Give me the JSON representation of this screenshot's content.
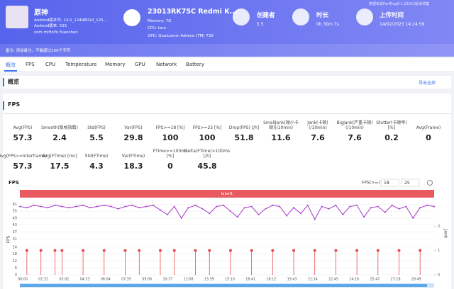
{
  "header": {
    "app_name": "原神",
    "android_build": "Android版本号: 14.0_12498014_125...",
    "android_kernel": "Android版本: 515",
    "package": "com.miHoYo.Yuanshen",
    "device": "23013RK75C Redmi K...",
    "memory": "Memory: 7G",
    "cpu": "CPU: taro",
    "gpu": "GPU: Qualcomm Adreno (TM) 730",
    "creator_label": "创建者",
    "creator_value": "5 5",
    "duration_label": "时长",
    "duration_value": "0h 30m 7s",
    "upload_label": "上传时间",
    "upload_value": "14/02/2023 14:24:59",
    "source_note": "数据来源PerfDog8.1.23012版本收集",
    "remark": "备注: 添加备注，不能超过200个字符"
  },
  "tabs": [
    "概览",
    "FPS",
    "CPU",
    "Temperature",
    "Memory",
    "GPU",
    "Network",
    "Battery"
  ],
  "overview": {
    "title": "概览",
    "export": "导出全部"
  },
  "fps_section": {
    "title": "FPS",
    "stats_row1": [
      {
        "label": "Avg(FPS)",
        "value": "57.3"
      },
      {
        "label": "Smooth(稳帧指数)",
        "value": "2.4"
      },
      {
        "label": "Std(FPS)",
        "value": "5.5"
      },
      {
        "label": "Var(FPS)",
        "value": "29.8"
      },
      {
        "label": "FPS>=18 [%]",
        "value": "100"
      },
      {
        "label": "FPS>=25 [%]",
        "value": "100"
      },
      {
        "label": "Drop(FPS) [/h]",
        "value": "51.8"
      },
      {
        "label": "SmallJank(微小卡顿)(/10min)",
        "value": "11.6"
      },
      {
        "label": "Jank(卡顿)(/10min)",
        "value": "7.6"
      },
      {
        "label": "BigJank(严重卡顿)(/10min)",
        "value": "7.6"
      },
      {
        "label": "Stutter(卡顿率) [%]",
        "value": "0.2"
      },
      {
        "label": "Avg(Frame)",
        "value": "0"
      }
    ],
    "stats_row2": [
      {
        "label": "Avg(FPS>=Interframe)",
        "value": "57.3"
      },
      {
        "label": "Avg(FTime) [ms]",
        "value": "17.5"
      },
      {
        "label": "Std(FTime)",
        "value": "4.3"
      },
      {
        "label": "Var(FTime)",
        "value": "18.3"
      },
      {
        "label": "FTime>=100ms [%]",
        "value": "0"
      },
      {
        "label": "Delta(FTime)>100ms [/h]",
        "value": "45.8"
      }
    ]
  },
  "fps_chart": {
    "type": "line",
    "title": "FPS",
    "threshold_label": "FPS(>=)",
    "thresholds": [
      18,
      25
    ],
    "band_label": "label1",
    "ylabel": "FPS",
    "y2label": "Jank",
    "ylim": [
      0,
      63
    ],
    "yticks": [
      0,
      6,
      12,
      18,
      24,
      31,
      37,
      43,
      49,
      55,
      61
    ],
    "y2lim": [
      0,
      3
    ],
    "y2ticks": [
      0,
      1,
      2
    ],
    "x_labels": [
      "00:00",
      "01:31",
      "03:02",
      "04:33",
      "06:04",
      "07:35",
      "09:06",
      "10:37",
      "12:08",
      "13:39",
      "15:10",
      "16:41",
      "18:12",
      "19:43",
      "21:14",
      "22:45",
      "24:16",
      "25:47",
      "27:18",
      "28:49"
    ],
    "series": [
      {
        "color": "#a63cc8",
        "values": [
          59,
          58,
          60,
          59,
          58,
          60,
          59,
          58,
          59,
          60,
          58,
          59,
          60,
          59,
          57,
          59,
          60,
          58,
          59,
          60,
          56,
          52,
          59,
          49,
          58,
          60,
          57,
          53,
          59,
          60,
          55,
          50,
          58,
          59,
          52,
          57,
          60,
          59,
          51,
          58,
          53,
          60,
          48,
          59,
          57,
          60,
          52,
          59,
          60,
          50,
          58,
          59,
          54,
          60,
          57,
          59,
          49,
          58,
          60,
          59
        ]
      },
      {
        "color": "#e84a4a",
        "axis": "y2",
        "values": [
          0,
          1,
          0,
          1,
          0,
          1,
          1,
          0,
          0,
          1,
          0,
          0,
          1,
          0,
          0,
          1,
          0,
          1,
          0,
          0,
          1,
          0,
          1,
          0,
          0,
          1,
          0,
          1,
          0,
          0,
          1,
          0,
          0,
          1,
          0,
          0,
          1,
          0,
          0,
          1,
          0,
          0,
          1,
          0,
          0,
          1,
          0,
          0,
          1,
          0,
          0,
          1,
          0,
          0,
          1,
          0,
          0,
          1,
          0,
          0
        ]
      }
    ]
  }
}
